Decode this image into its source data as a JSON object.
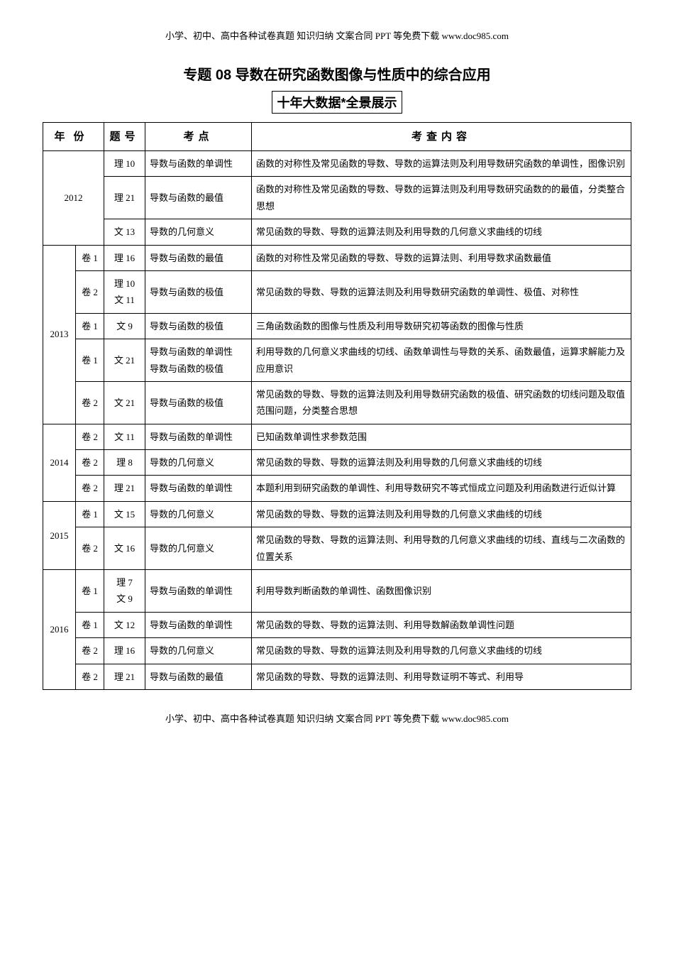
{
  "header": "小学、初中、高中各种试卷真题 知识归纳 文案合同 PPT 等免费下载   www.doc985.com",
  "footer": "小学、初中、高中各种试卷真题 知识归纳 文案合同 PPT 等免费下载   www.doc985.com",
  "title": "专题 08 导数在研究函数图像与性质中的综合应用",
  "subtitle": "十年大数据*全景展示",
  "columns": {
    "year": "年份",
    "num": "题号",
    "point": "考点",
    "content": "考查内容"
  },
  "rows": [
    {
      "year_a": "2012",
      "year_a_rowspan": 3,
      "year_a_colspan": 2,
      "num": "理 10",
      "point": "导数与函数的单调性",
      "content": "函数的对称性及常见函数的导数、导数的运算法则及利用导数研究函数的单调性，图像识别"
    },
    {
      "num": "理 21",
      "point": "导数与函数的最值",
      "content": "函数的对称性及常见函数的导数、导数的运算法则及利用导数研究函数的的最值，分类整合思想"
    },
    {
      "num": "文 13",
      "point": "导数的几何意义",
      "content": "常见函数的导数、导数的运算法则及利用导数的几何意义求曲线的切线"
    },
    {
      "year_a": "2013",
      "year_a_rowspan": 5,
      "year_b": "卷 1",
      "num": "理 16",
      "point": "导数与函数的最值",
      "content": "函数的对称性及常见函数的导数、导数的运算法则、利用导数求函数最值"
    },
    {
      "year_b": "卷 2",
      "num": "理 10\n文 11",
      "point": "导数与函数的极值",
      "content": "常见函数的导数、导数的运算法则及利用导数研究函数的单调性、极值、对称性"
    },
    {
      "year_b": "卷 1",
      "num": "文 9",
      "point": "导数与函数的极值",
      "content": "三角函数函数的图像与性质及利用导数研究初等函数的图像与性质"
    },
    {
      "year_b": "卷 1",
      "num": "文 21",
      "point": "导数与函数的单调性\n导数与函数的极值",
      "content": "利用导数的几何意义求曲线的切线、函数单调性与导数的关系、函数最值，运算求解能力及应用意识"
    },
    {
      "year_b": "卷 2",
      "num": "文 21",
      "point": "导数与函数的极值",
      "content": "常见函数的导数、导数的运算法则及利用导数研究函数的极值、研究函数的切线问题及取值范围问题，分类整合思想"
    },
    {
      "year_a": "2014",
      "year_a_rowspan": 3,
      "year_b": "卷 2",
      "num": "文 11",
      "point": "导数与函数的单调性",
      "content": "已知函数单调性求参数范围"
    },
    {
      "year_b": "卷 2",
      "num": "理 8",
      "point": "导数的几何意义",
      "content": "常见函数的导数、导数的运算法则及利用导数的几何意义求曲线的切线"
    },
    {
      "year_b": "卷 2",
      "num": "理 21",
      "point": "导数与函数的单调性",
      "content": "本题利用到研究函数的单调性、利用导数研究不等式恒成立问题及利用函数进行近似计算"
    },
    {
      "year_a": "2015",
      "year_a_rowspan": 2,
      "year_b": "卷 1",
      "num": "文 15",
      "point": "导数的几何意义",
      "content": "常见函数的导数、导数的运算法则及利用导数的几何意义求曲线的切线"
    },
    {
      "year_b": "卷 2",
      "num": "文 16",
      "point": "导数的几何意义",
      "content": "常见函数的导数、导数的运算法则、利用导数的几何意义求曲线的切线、直线与二次函数的位置关系"
    },
    {
      "year_a": "2016",
      "year_a_rowspan": 4,
      "year_b": "卷 1",
      "num": "理 7\n文 9",
      "point": "导数与函数的单调性",
      "content": "利用导数判断函数的单调性、函数图像识别"
    },
    {
      "year_b": "卷 1",
      "num": "文 12",
      "point": "导数与函数的单调性",
      "content": "常见函数的导数、导数的运算法则、利用导数解函数单调性问题"
    },
    {
      "year_b": "卷 2",
      "num": "理 16",
      "point": "导数的几何意义",
      "content": "常见函数的导数、导数的运算法则及利用导数的几何意义求曲线的切线"
    },
    {
      "year_b": "卷 2",
      "num": "理 21",
      "point": "导数与函数的最值",
      "content": "常见函数的导数、导数的运算法则、利用导数证明不等式、利用导"
    }
  ]
}
